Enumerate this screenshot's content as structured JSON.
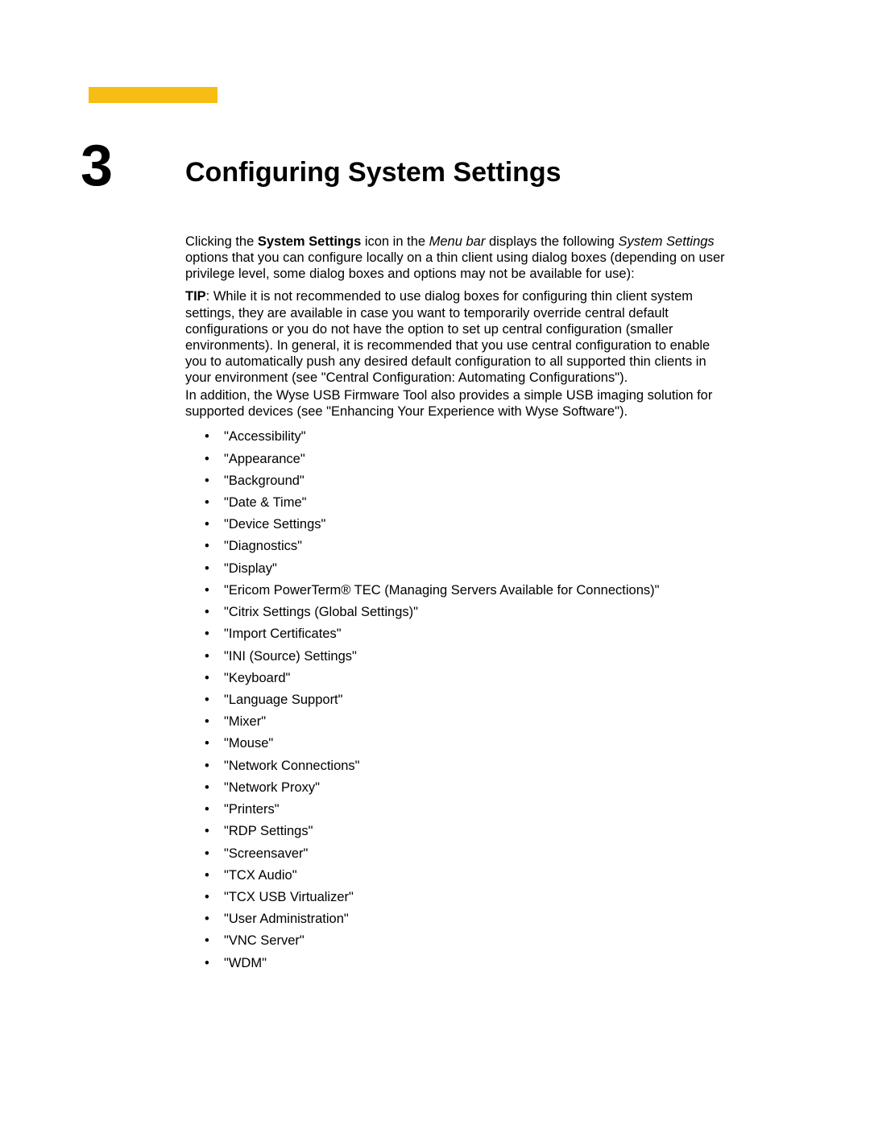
{
  "accent_color": "#f7bd14",
  "chapter": {
    "number": "3",
    "title": "Configuring System Settings"
  },
  "intro": {
    "prefix": "Clicking the ",
    "bold": "System Settings",
    "mid1": " icon in the ",
    "italic1": "Menu bar",
    "mid2": " displays the following ",
    "italic2": "System Settings",
    "suffix": " options that you can configure locally on a thin client using dialog boxes (depending on user privilege level, some dialog boxes and options may not be available for use):"
  },
  "tip": {
    "label": "TIP",
    "text": ": While it is not recommended to use dialog boxes for configuring thin client system settings, they are available in case you want to temporarily override central default configurations or you do not have the option to set up central configuration (smaller environments). In general, it is recommended that you use central configuration to enable you to automatically push any desired default configuration to all supported thin clients in your environment (see \"Central Configuration: Automating Configurations\")."
  },
  "addendum": "In addition, the Wyse USB Firmware Tool also provides a simple USB imaging solution for supported devices (see \"Enhancing Your Experience with Wyse Software\").",
  "settings": [
    "\"Accessibility\"",
    "\"Appearance\"",
    "\"Background\"",
    "\"Date & Time\"",
    "\"Device Settings\"",
    "\"Diagnostics\"",
    "\"Display\"",
    "\"Ericom PowerTerm® TEC (Managing Servers Available for Connections)\"",
    "\"Citrix Settings (Global Settings)\"",
    "\"Import Certificates\"",
    "\"INI (Source) Settings\"",
    "\"Keyboard\"",
    "\"Language Support\"",
    "\"Mixer\"",
    "\"Mouse\"",
    "\"Network Connections\"",
    "\"Network Proxy\"",
    "\"Printers\"",
    "\"RDP Settings\"",
    "\"Screensaver\"",
    "\"TCX Audio\"",
    "\"TCX USB Virtualizer\"",
    "\"User Administration\"",
    "\"VNC Server\"",
    "\"WDM\""
  ]
}
